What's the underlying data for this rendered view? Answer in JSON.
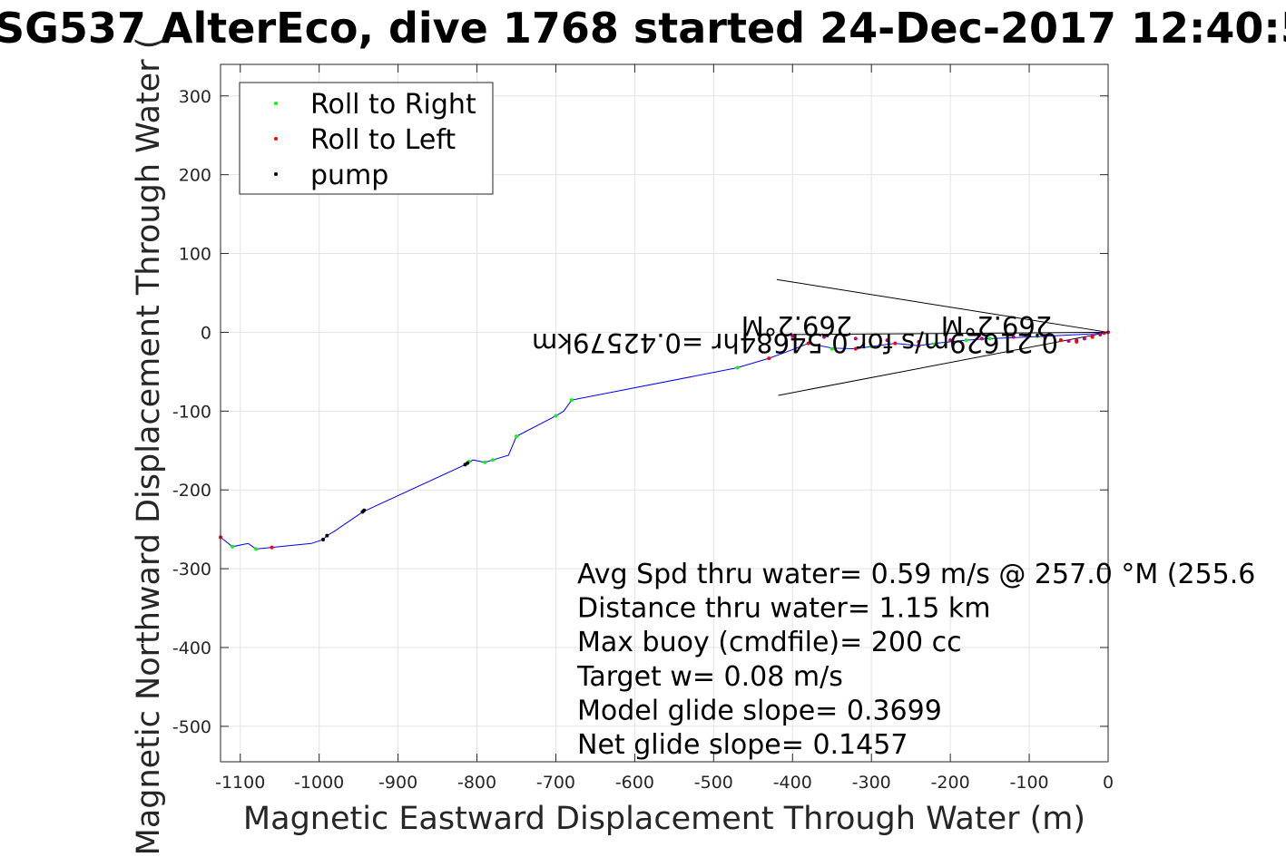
{
  "chart_data": {
    "type": "line",
    "title": "SG537 AlterEco, dive 1768 started 24-Dec-2017 12:40:5",
    "xlabel": "Magnetic Eastward Displacement Through Water (m)",
    "ylabel": "Magnetic Northward Displacement Through Water (",
    "xlim": [
      -1125,
      0
    ],
    "ylim": [
      -545,
      340
    ],
    "xticks": [
      -1100,
      -1000,
      -900,
      -800,
      -700,
      -600,
      -500,
      -400,
      -300,
      -200,
      -100,
      0
    ],
    "xtick_labels": [
      "-1100",
      "-1000",
      "-900",
      "-800",
      "-700",
      "-600",
      "-500",
      "-400",
      "-300",
      "-200",
      "-100",
      "0"
    ],
    "yticks": [
      300,
      200,
      100,
      0,
      -100,
      -200,
      -300,
      -400,
      -500
    ],
    "ytick_labels": [
      "300",
      "200",
      "100",
      "0",
      "-100",
      "-200",
      "-300",
      "-400",
      "-500"
    ],
    "grid": true,
    "legend": {
      "placement": "top-left",
      "entries": [
        {
          "label": "Roll to Right",
          "color": "#00ff00"
        },
        {
          "label": "Roll to Left",
          "color": "#ff0000"
        },
        {
          "label": "pump",
          "color": "#000000"
        }
      ]
    },
    "track_color": "#0000ff",
    "track": {
      "x": [
        -1125,
        -1110,
        -1090,
        -1080,
        -1060,
        -1010,
        -995,
        -990,
        -980,
        -945,
        -815,
        -805,
        -790,
        -780,
        -760,
        -750,
        -700,
        -690,
        -680,
        -470,
        -430,
        -400,
        -380,
        -350,
        -320,
        -300,
        -270,
        -240,
        -220,
        -180,
        -150,
        -100,
        -60,
        -20,
        0
      ],
      "y": [
        -260,
        -272,
        -268,
        -275,
        -273,
        -268,
        -263,
        -258,
        -252,
        -228,
        -168,
        -162,
        -165,
        -162,
        -156,
        -132,
        -106,
        -100,
        -86,
        -45,
        -33,
        -22,
        -14,
        -20,
        -21,
        -18,
        -14,
        -17,
        -14,
        -10,
        -8,
        -6,
        -4,
        -2,
        0
      ]
    },
    "roll_right": {
      "x": [
        -1110,
        -1080,
        -810,
        -790,
        -780,
        -750,
        -700,
        -680,
        -470,
        -350,
        -300,
        -220,
        -180,
        -150,
        -90
      ],
      "y": [
        -272,
        -275,
        -164,
        -165,
        -162,
        -132,
        -106,
        -86,
        -45,
        -21,
        -18,
        -15,
        -10,
        -8,
        -5
      ]
    },
    "roll_left": {
      "x": [
        -1125,
        -1060,
        -430,
        -380,
        -320,
        -270,
        -240,
        -60,
        -40,
        -20,
        -5
      ],
      "y": [
        -260,
        -273,
        -33,
        -14,
        -21,
        -14,
        -17,
        -10,
        -12,
        -6,
        -1
      ]
    },
    "pump": {
      "x": [
        -995,
        -990,
        -945,
        -943,
        -815,
        -812
      ],
      "y": [
        -263,
        -258,
        -228,
        -226,
        -168,
        -166
      ]
    },
    "surface_points": {
      "color": "#c0007f",
      "x": [
        -400,
        -360,
        -320,
        -280,
        -240,
        -200,
        -160,
        -120,
        -80,
        -60,
        -50,
        -40,
        -30,
        -20,
        -10,
        0
      ],
      "y": [
        -5,
        -6,
        -8,
        -10,
        -12,
        -10,
        -8,
        -6,
        -7,
        -10,
        -11,
        -10,
        -8,
        -5,
        -3,
        0
      ]
    },
    "current_wedge": {
      "tip": [
        0,
        0
      ],
      "upper_end": [
        -420,
        67
      ],
      "lower_end": [
        -418,
        -80
      ],
      "arrow_end": [
        -420,
        -3
      ]
    },
    "annotations": {
      "current_upper": "269.2°M",
      "current_right": "269.2°M",
      "current_text": "0.21629m/s for 0.54684hr =0.42579km"
    },
    "info_lines": [
      "Avg Spd thru water=  0.59 m/s @ 257.0 °M (255.6",
      "Distance thru water=  1.15 km",
      "Max buoy (cmdfile)= 200 cc",
      "Target w= 0.08 m/s",
      "Model glide slope= 0.3699",
      "Net glide slope= 0.1457"
    ]
  }
}
